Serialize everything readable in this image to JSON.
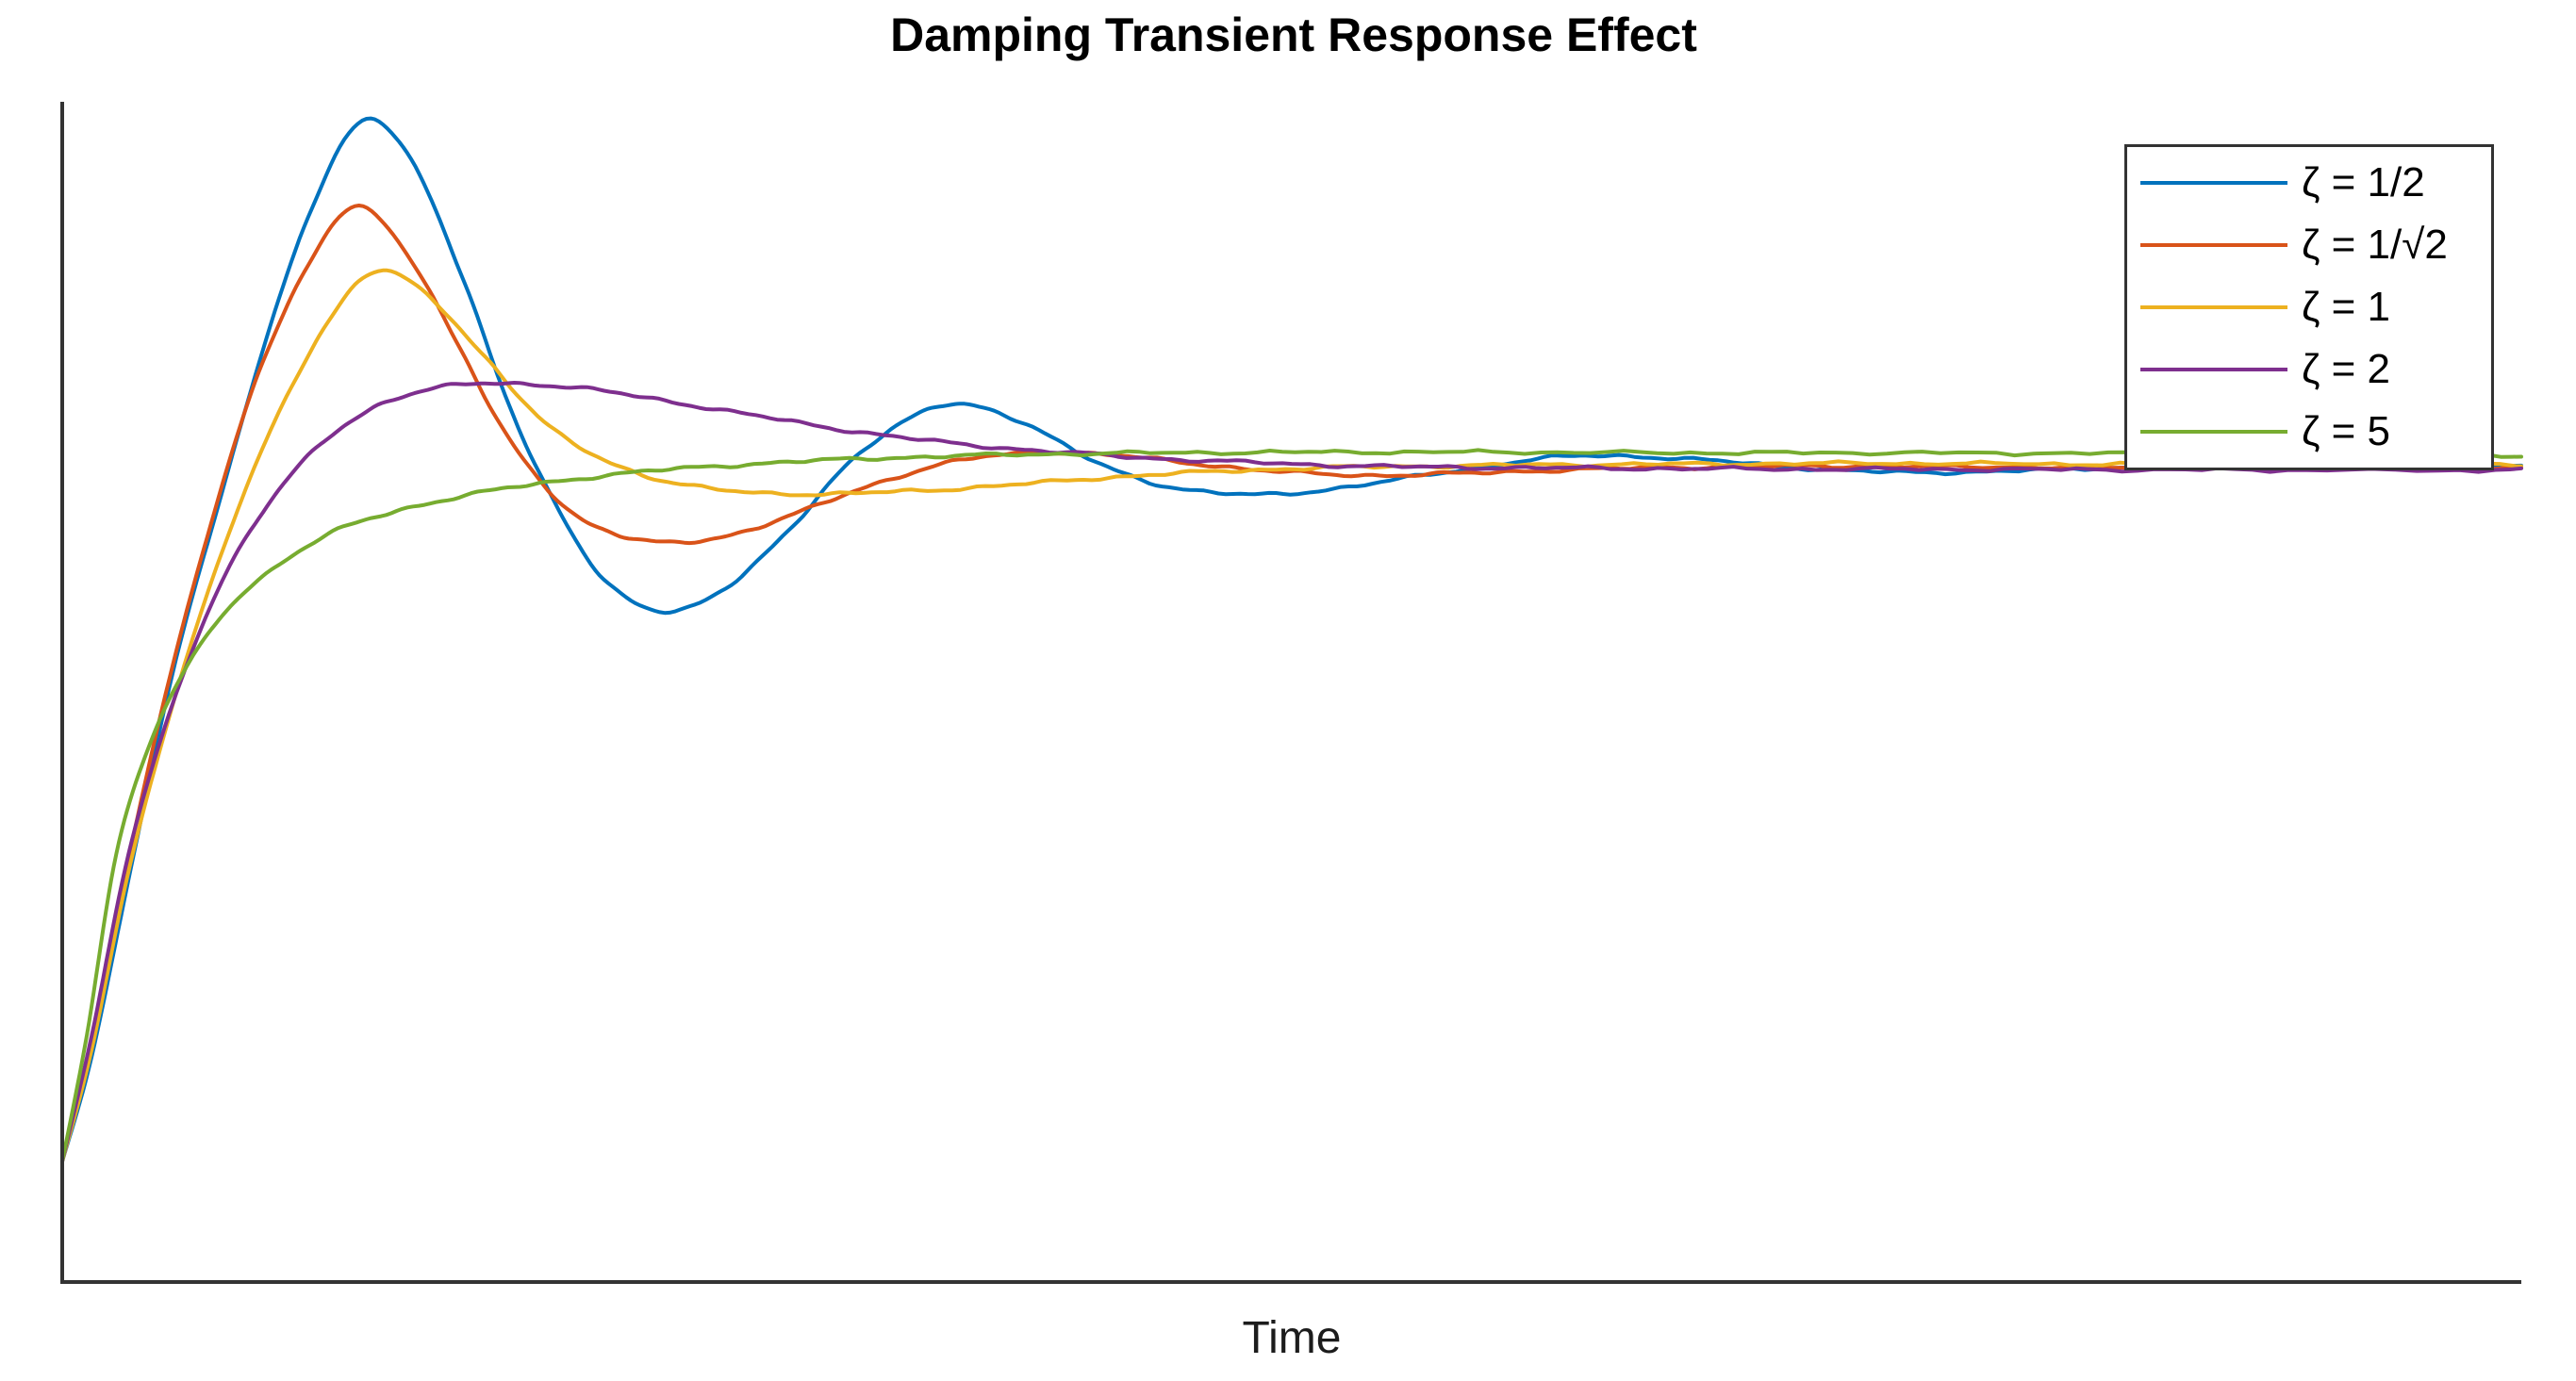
{
  "chart_data": {
    "type": "line",
    "title": "Damping Transient Response Effect",
    "xlabel": "Time",
    "ylabel": "",
    "xlim": [
      0,
      10
    ],
    "ylim": [
      -0.17,
      1.52
    ],
    "grid": false,
    "ticks": "none",
    "spines": [
      "left",
      "bottom"
    ],
    "legend": {
      "position": "upper-right",
      "border": true
    },
    "axis_color": "#333333",
    "background_color": "#ffffff",
    "series": [
      {
        "name": "ζ = 1/2",
        "color": "#0072BD",
        "points": [
          [
            0,
            0
          ],
          [
            0.12,
            0.15
          ],
          [
            0.28,
            0.42
          ],
          [
            0.45,
            0.7
          ],
          [
            0.62,
            0.92
          ],
          [
            0.8,
            1.14
          ],
          [
            1.0,
            1.35
          ],
          [
            1.22,
            1.49
          ],
          [
            1.42,
            1.43
          ],
          [
            1.62,
            1.27
          ],
          [
            1.82,
            1.08
          ],
          [
            2.02,
            0.93
          ],
          [
            2.22,
            0.825
          ],
          [
            2.45,
            0.787
          ],
          [
            2.7,
            0.82
          ],
          [
            2.95,
            0.9
          ],
          [
            3.2,
            1.0
          ],
          [
            3.45,
            1.062
          ],
          [
            3.65,
            1.083
          ],
          [
            3.9,
            1.058
          ],
          [
            4.2,
            1.0
          ],
          [
            4.5,
            0.965
          ],
          [
            4.85,
            0.953
          ],
          [
            5.2,
            0.963
          ],
          [
            5.6,
            0.984
          ],
          [
            6.0,
            1.004
          ],
          [
            6.3,
            1.009
          ],
          [
            6.7,
            1.002
          ],
          [
            7.1,
            0.991
          ],
          [
            7.5,
            0.985
          ],
          [
            8.0,
            0.988
          ],
          [
            8.55,
            0.994
          ],
          [
            9.1,
            0.997
          ],
          [
            9.6,
            0.996
          ],
          [
            10,
            0.994
          ]
        ]
      },
      {
        "name": "ζ = 1/√2",
        "color": "#D95319",
        "points": [
          [
            0,
            0
          ],
          [
            0.12,
            0.17
          ],
          [
            0.28,
            0.45
          ],
          [
            0.45,
            0.71
          ],
          [
            0.62,
            0.93
          ],
          [
            0.8,
            1.13
          ],
          [
            1.0,
            1.28
          ],
          [
            1.19,
            1.365
          ],
          [
            1.4,
            1.3
          ],
          [
            1.62,
            1.16
          ],
          [
            1.82,
            1.03
          ],
          [
            2.05,
            0.935
          ],
          [
            2.25,
            0.897
          ],
          [
            2.47,
            0.884
          ],
          [
            2.72,
            0.896
          ],
          [
            3.0,
            0.928
          ],
          [
            3.3,
            0.968
          ],
          [
            3.62,
            1.0
          ],
          [
            3.95,
            1.013
          ],
          [
            4.25,
            1.01
          ],
          [
            4.6,
            0.998
          ],
          [
            4.95,
            0.986
          ],
          [
            5.3,
            0.981
          ],
          [
            5.65,
            0.983
          ],
          [
            6.05,
            0.988
          ],
          [
            6.55,
            0.992
          ],
          [
            7.1,
            0.994
          ],
          [
            7.7,
            0.993
          ],
          [
            8.4,
            0.992
          ],
          [
            9.2,
            0.992
          ],
          [
            10,
            0.992
          ]
        ]
      },
      {
        "name": "ζ = 1",
        "color": "#EDB120",
        "points": [
          [
            0,
            0
          ],
          [
            0.12,
            0.16
          ],
          [
            0.28,
            0.43
          ],
          [
            0.48,
            0.69
          ],
          [
            0.68,
            0.9
          ],
          [
            0.88,
            1.07
          ],
          [
            1.08,
            1.2
          ],
          [
            1.27,
            1.272
          ],
          [
            1.48,
            1.24
          ],
          [
            1.72,
            1.15
          ],
          [
            1.98,
            1.05
          ],
          [
            2.28,
            0.992
          ],
          [
            2.6,
            0.963
          ],
          [
            3.03,
            0.954
          ],
          [
            3.42,
            0.958
          ],
          [
            3.82,
            0.966
          ],
          [
            4.22,
            0.977
          ],
          [
            4.62,
            0.985
          ],
          [
            5.05,
            0.991
          ],
          [
            5.55,
            0.994
          ],
          [
            6.1,
            0.996
          ],
          [
            6.7,
            0.997
          ],
          [
            7.4,
            0.998
          ],
          [
            8.1,
            0.997
          ],
          [
            8.9,
            0.996
          ],
          [
            9.5,
            0.996
          ],
          [
            10,
            0.996
          ]
        ]
      },
      {
        "name": "ζ = 2",
        "color": "#7E2F8E",
        "points": [
          [
            0,
            0
          ],
          [
            0.12,
            0.18
          ],
          [
            0.27,
            0.44
          ],
          [
            0.45,
            0.655
          ],
          [
            0.65,
            0.83
          ],
          [
            0.85,
            0.945
          ],
          [
            1.05,
            1.025
          ],
          [
            1.25,
            1.075
          ],
          [
            1.45,
            1.1
          ],
          [
            1.68,
            1.112
          ],
          [
            1.92,
            1.111
          ],
          [
            2.18,
            1.102
          ],
          [
            2.48,
            1.086
          ],
          [
            2.82,
            1.066
          ],
          [
            3.18,
            1.046
          ],
          [
            3.58,
            1.028
          ],
          [
            3.98,
            1.016
          ],
          [
            4.4,
            1.006
          ],
          [
            4.85,
            0.999
          ],
          [
            5.3,
            0.994
          ],
          [
            5.75,
            0.992
          ],
          [
            6.25,
            0.991
          ],
          [
            6.85,
            0.99
          ],
          [
            7.55,
            0.9895
          ],
          [
            8.25,
            0.989
          ],
          [
            9.05,
            0.9885
          ],
          [
            10,
            0.988
          ]
        ]
      },
      {
        "name": "ζ = 5",
        "color": "#77AC30",
        "points": [
          [
            0,
            0
          ],
          [
            0.1,
            0.18
          ],
          [
            0.22,
            0.44
          ],
          [
            0.36,
            0.6
          ],
          [
            0.52,
            0.715
          ],
          [
            0.7,
            0.8
          ],
          [
            0.9,
            0.858
          ],
          [
            1.12,
            0.902
          ],
          [
            1.36,
            0.93
          ],
          [
            1.64,
            0.952
          ],
          [
            1.94,
            0.969
          ],
          [
            2.27,
            0.983
          ],
          [
            2.62,
            0.993
          ],
          [
            3.02,
            1.001
          ],
          [
            3.47,
            1.007
          ],
          [
            3.97,
            1.011
          ],
          [
            4.52,
            1.013
          ],
          [
            5.12,
            1.014
          ],
          [
            5.82,
            1.014
          ],
          [
            6.62,
            1.013
          ],
          [
            7.42,
            1.013
          ],
          [
            8.32,
            1.012
          ],
          [
            9.22,
            1.011
          ],
          [
            10,
            1.009
          ]
        ]
      }
    ]
  }
}
